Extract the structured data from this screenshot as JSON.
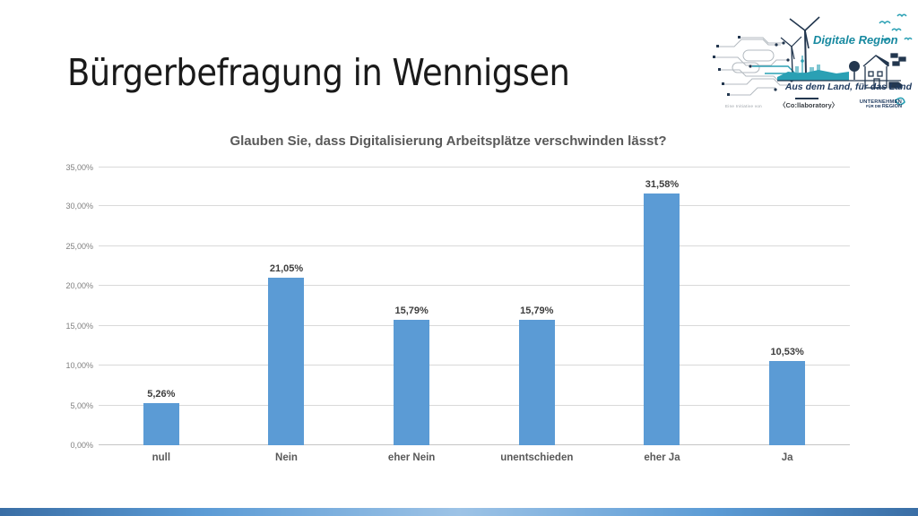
{
  "header": {
    "title": "Bürgerbefragung in Wennigsen"
  },
  "logo": {
    "brand": "Digitale Region",
    "tagline": "Aus dem Land, für das Land",
    "initiative_label": "Eine Initiative von",
    "partner_collaboratory": "〈Co:llaboratory〉",
    "partner_unternehmen_line1": "UNTERNEHMEN",
    "partner_unternehmen_line2_small": "FÜR DIE ",
    "partner_unternehmen_line2_big": "REGION",
    "brand_color": "#1789A0",
    "navy_color": "#1F3A5F",
    "teal_color": "#2AA0B4"
  },
  "chart_data": {
    "type": "bar",
    "title": "Glauben Sie, dass Digitalisierung Arbeitsplätze verschwinden lässt?",
    "categories": [
      "null",
      "Nein",
      "eher Nein",
      "unentschieden",
      "eher Ja",
      "Ja"
    ],
    "values": [
      5.26,
      21.05,
      15.79,
      15.79,
      31.58,
      10.53
    ],
    "value_labels": [
      "5,26%",
      "21,05%",
      "15,79%",
      "15,79%",
      "31,58%",
      "10,53%"
    ],
    "xlabel": "",
    "ylabel": "",
    "ylim": [
      0,
      35
    ],
    "ytick_step": 5,
    "ytick_labels_bottom_up": [
      "0,00%",
      "5,00%",
      "10,00%",
      "15,00%",
      "20,00%",
      "25,00%",
      "30,00%",
      "35,00%"
    ],
    "grid": true,
    "legend": false,
    "bar_color": "#5B9BD5",
    "grid_color": "#D9D9D9"
  }
}
